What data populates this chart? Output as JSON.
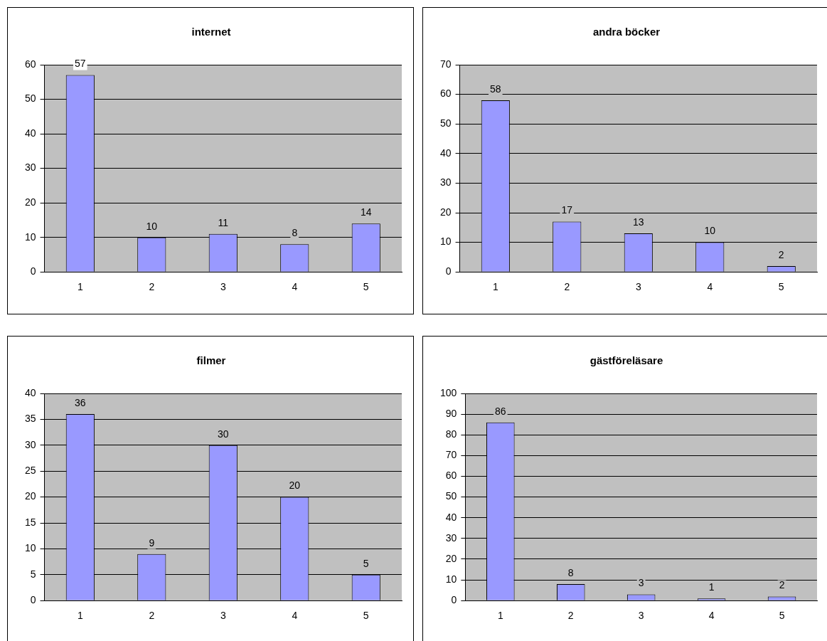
{
  "chart_data": [
    {
      "type": "bar",
      "title": "internet",
      "categories": [
        "1",
        "2",
        "3",
        "4",
        "5"
      ],
      "values": [
        57,
        10,
        11,
        8,
        14
      ],
      "color": "#9999ff",
      "ylim": [
        0,
        60
      ],
      "yticks": [
        0,
        10,
        20,
        30,
        40,
        50,
        60
      ],
      "grid": "y",
      "data_labels": true,
      "legend": false
    },
    {
      "type": "bar",
      "title": "andra böcker",
      "categories": [
        "1",
        "2",
        "3",
        "4",
        "5"
      ],
      "values": [
        58,
        17,
        13,
        10,
        2
      ],
      "color": "#9999ff",
      "ylim": [
        0,
        70
      ],
      "yticks": [
        0,
        10,
        20,
        30,
        40,
        50,
        60,
        70
      ],
      "grid": "y",
      "data_labels": true,
      "legend": false
    },
    {
      "type": "bar",
      "title": "filmer",
      "categories": [
        "1",
        "2",
        "3",
        "4",
        "5"
      ],
      "values": [
        36,
        9,
        30,
        20,
        5
      ],
      "color": "#9999ff",
      "ylim": [
        0,
        40
      ],
      "yticks": [
        0,
        5,
        10,
        15,
        20,
        25,
        30,
        35,
        40
      ],
      "grid": "y",
      "data_labels": true,
      "legend": false
    },
    {
      "type": "bar",
      "title": "gästföreläsare",
      "categories": [
        "1",
        "2",
        "3",
        "4",
        "5"
      ],
      "values": [
        86,
        8,
        3,
        1,
        2
      ],
      "color": "#9999ff",
      "ylim": [
        0,
        100
      ],
      "yticks": [
        0,
        10,
        20,
        30,
        40,
        50,
        60,
        70,
        80,
        90,
        100
      ],
      "grid": "y",
      "data_labels": true,
      "legend": false
    }
  ]
}
